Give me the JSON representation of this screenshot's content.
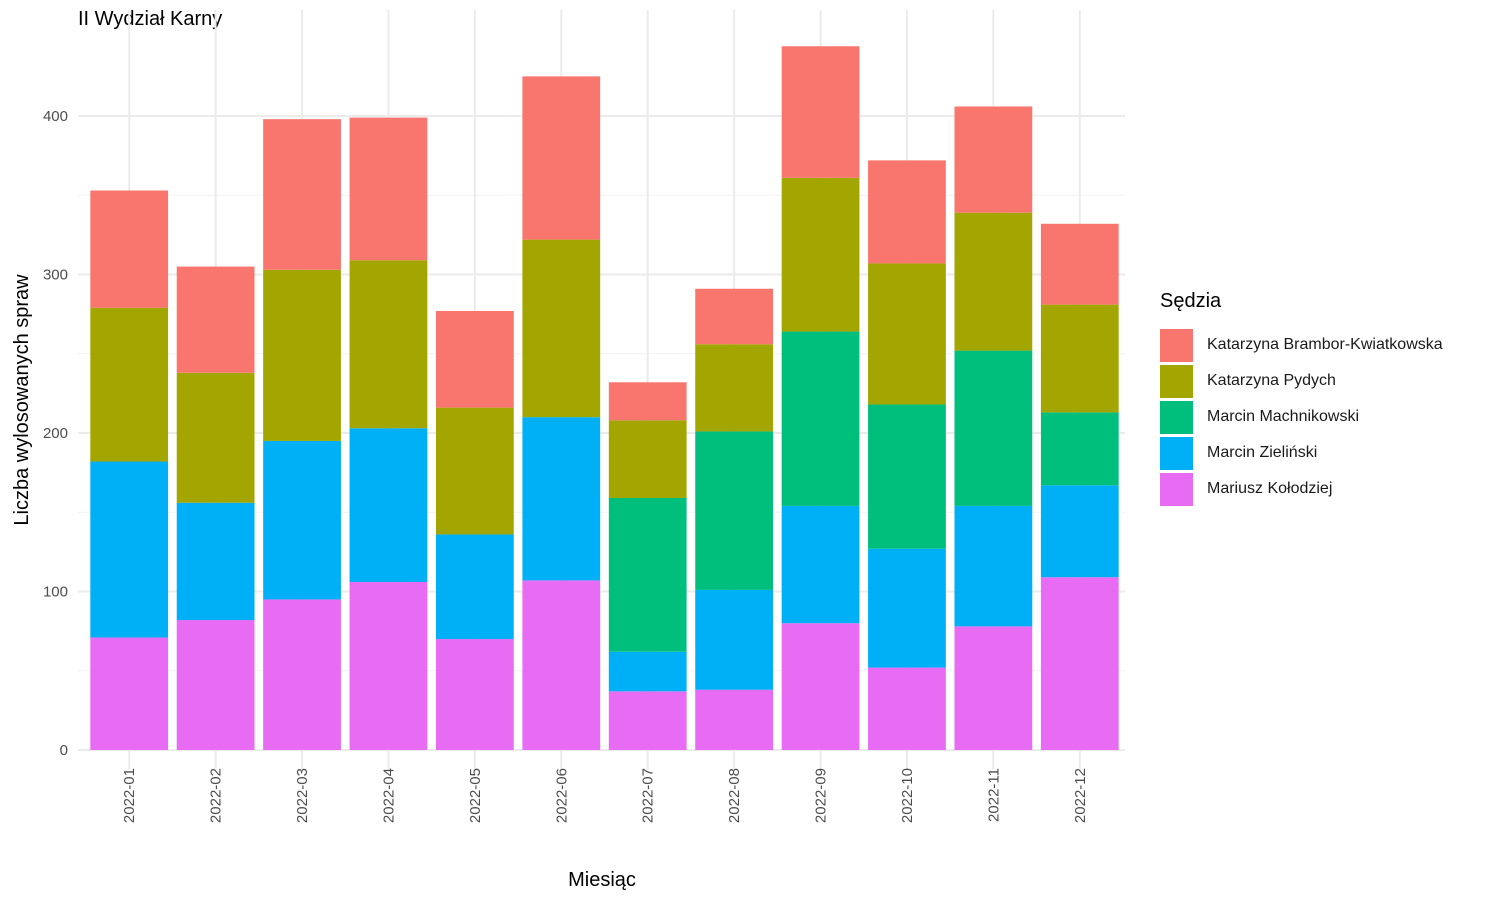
{
  "chart_data": {
    "type": "bar",
    "stacked": true,
    "title": "II Wydział Karny",
    "xlabel": "Miesiąc",
    "ylabel": "Liczba wylosowanych spraw",
    "ylim": [
      0,
      445
    ],
    "yticks": [
      0,
      100,
      200,
      300,
      400
    ],
    "grid": true,
    "legend_position": "right",
    "legend_title": "Sędzia",
    "categories": [
      "2022-01",
      "2022-02",
      "2022-03",
      "2022-04",
      "2022-05",
      "2022-06",
      "2022-07",
      "2022-08",
      "2022-09",
      "2022-10",
      "2022-11",
      "2022-12"
    ],
    "series": [
      {
        "name": "Mariusz Kołodziej",
        "color": "#E76BF3",
        "values": [
          71,
          82,
          95,
          106,
          70,
          107,
          37,
          38,
          80,
          52,
          78,
          109
        ]
      },
      {
        "name": "Marcin Zieliński",
        "color": "#00B0F6",
        "values": [
          111,
          74,
          100,
          97,
          66,
          103,
          25,
          63,
          74,
          75,
          76,
          58
        ]
      },
      {
        "name": "Marcin Machnikowski",
        "color": "#00BF7D",
        "values": [
          0,
          0,
          0,
          0,
          0,
          0,
          97,
          100,
          110,
          91,
          98,
          46
        ]
      },
      {
        "name": "Katarzyna Pydych",
        "color": "#A3A500",
        "values": [
          97,
          82,
          108,
          106,
          80,
          112,
          49,
          55,
          97,
          89,
          87,
          68
        ]
      },
      {
        "name": "Katarzyna Brambor-Kwiatkowska",
        "color": "#F8766D",
        "values": [
          74,
          67,
          95,
          90,
          61,
          103,
          24,
          35,
          83,
          65,
          67,
          51
        ]
      }
    ],
    "legend_order": [
      "Katarzyna Brambor-Kwiatkowska",
      "Katarzyna Pydych",
      "Marcin Machnikowski",
      "Marcin Zieliński",
      "Mariusz Kołodziej"
    ]
  }
}
